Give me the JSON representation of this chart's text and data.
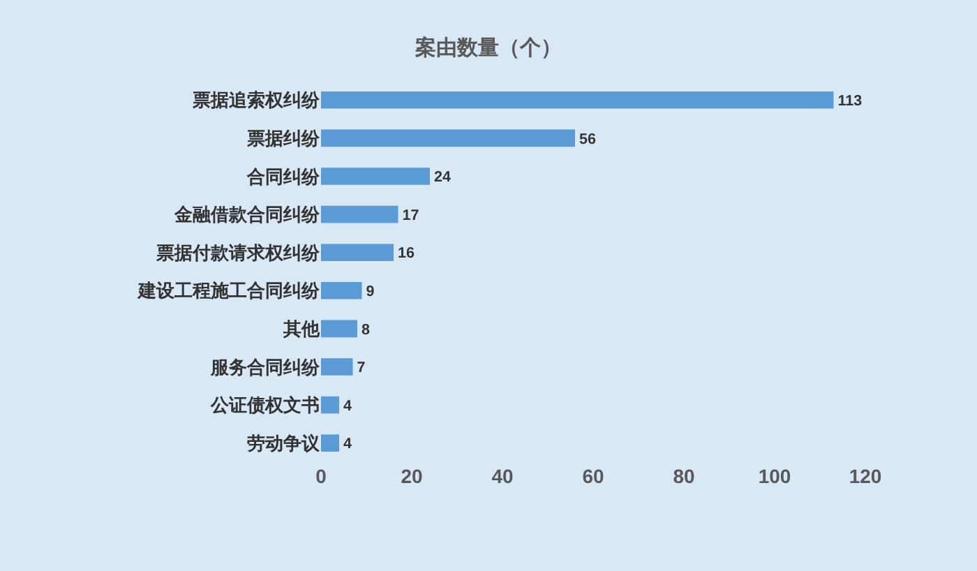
{
  "chart_data": {
    "type": "bar",
    "orientation": "horizontal",
    "title": "案由数量（个）",
    "categories": [
      "票据追索权纠纷",
      "票据纠纷",
      "合同纠纷",
      "金融借款合同纠纷",
      "票据付款请求权纠纷",
      "建设工程施工合同纠纷",
      "其他",
      "服务合同纠纷",
      "公证债权文书",
      "劳动争议"
    ],
    "values": [
      113,
      56,
      24,
      17,
      16,
      9,
      8,
      7,
      4,
      4
    ],
    "color": "#5b9bd5",
    "xlim": [
      0,
      120
    ],
    "xticks": [
      0,
      20,
      40,
      60,
      80,
      100,
      120
    ],
    "data_labels": true,
    "grid": false,
    "legend": false
  }
}
